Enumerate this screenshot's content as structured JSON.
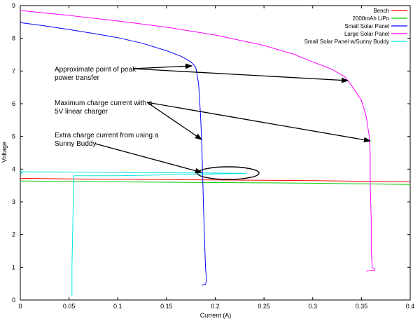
{
  "chart_data": {
    "type": "line",
    "xlabel": "Current (A)",
    "ylabel": "Voltage",
    "xlim": [
      0,
      0.4
    ],
    "ylim": [
      0,
      9
    ],
    "x_ticks": [
      "0",
      "0.05",
      "0.1",
      "0.15",
      "0.2",
      "0.25",
      "0.3",
      "0.35",
      "0.4"
    ],
    "y_ticks": [
      "0",
      "1",
      "2",
      "3",
      "4",
      "5",
      "6",
      "7",
      "8",
      "9"
    ],
    "legend_position": "top-right",
    "series": [
      {
        "name": "Bench",
        "color": "#ff0000",
        "points": [
          [
            0,
            3.72
          ],
          [
            0.05,
            3.7
          ],
          [
            0.1,
            3.69
          ],
          [
            0.15,
            3.68
          ],
          [
            0.2,
            3.67
          ],
          [
            0.25,
            3.66
          ],
          [
            0.3,
            3.65
          ],
          [
            0.35,
            3.63
          ],
          [
            0.4,
            3.61
          ]
        ]
      },
      {
        "name": "2000mAh LiPo",
        "color": "#00cc00",
        "points": [
          [
            0,
            3.64
          ],
          [
            0.05,
            3.62
          ],
          [
            0.1,
            3.61
          ],
          [
            0.15,
            3.6
          ],
          [
            0.2,
            3.59
          ],
          [
            0.25,
            3.58
          ],
          [
            0.3,
            3.57
          ],
          [
            0.35,
            3.55
          ],
          [
            0.4,
            3.53
          ]
        ]
      },
      {
        "name": "Small Solar Panel",
        "color": "#0000ff",
        "points": [
          [
            0,
            8.48
          ],
          [
            0.025,
            8.38
          ],
          [
            0.05,
            8.27
          ],
          [
            0.075,
            8.15
          ],
          [
            0.1,
            8.02
          ],
          [
            0.125,
            7.85
          ],
          [
            0.15,
            7.62
          ],
          [
            0.165,
            7.45
          ],
          [
            0.175,
            7.28
          ],
          [
            0.18,
            7.12
          ],
          [
            0.183,
            6.6
          ],
          [
            0.185,
            5.6
          ],
          [
            0.186,
            4.9
          ],
          [
            0.187,
            3.9
          ],
          [
            0.188,
            2.8
          ],
          [
            0.189,
            1.8
          ],
          [
            0.19,
            1.0
          ],
          [
            0.191,
            0.6
          ],
          [
            0.19,
            0.48
          ],
          [
            0.186,
            0.45
          ]
        ]
      },
      {
        "name": "Large Solar Panel",
        "color": "#ff00ff",
        "points": [
          [
            0,
            8.85
          ],
          [
            0.05,
            8.7
          ],
          [
            0.1,
            8.53
          ],
          [
            0.15,
            8.34
          ],
          [
            0.2,
            8.1
          ],
          [
            0.25,
            7.78
          ],
          [
            0.28,
            7.52
          ],
          [
            0.3,
            7.28
          ],
          [
            0.32,
            7.05
          ],
          [
            0.333,
            6.82
          ],
          [
            0.34,
            6.55
          ],
          [
            0.35,
            6.1
          ],
          [
            0.355,
            5.6
          ],
          [
            0.358,
            5.0
          ],
          [
            0.359,
            4.5
          ],
          [
            0.359,
            3.5
          ],
          [
            0.36,
            2.5
          ],
          [
            0.36,
            1.6
          ],
          [
            0.361,
            1.0
          ],
          [
            0.364,
            0.92
          ],
          [
            0.355,
            0.88
          ]
        ]
      },
      {
        "name": "Small Solar Panel w/Sunny Buddy",
        "color": "#00e5e5",
        "points": [
          [
            0.001,
            3.95
          ],
          [
            0.001,
            3.86
          ],
          [
            0.002,
            3.92
          ],
          [
            0.05,
            3.91
          ],
          [
            0.1,
            3.9
          ],
          [
            0.15,
            3.89
          ],
          [
            0.2,
            3.88
          ],
          [
            0.232,
            3.87
          ],
          [
            0.1,
            3.8
          ],
          [
            0.055,
            3.8
          ],
          [
            0.054,
            2.5
          ],
          [
            0.053,
            1.0
          ],
          [
            0.053,
            0.12
          ]
        ]
      }
    ],
    "annotations": [
      {
        "lines": [
          "Approximate point of peak",
          "power transfer"
        ]
      },
      {
        "lines": [
          "Maximum charge current with a",
          "5V linear charger"
        ]
      },
      {
        "lines": [
          "Extra charge current from using a",
          "Sunny Buddy"
        ]
      }
    ]
  }
}
